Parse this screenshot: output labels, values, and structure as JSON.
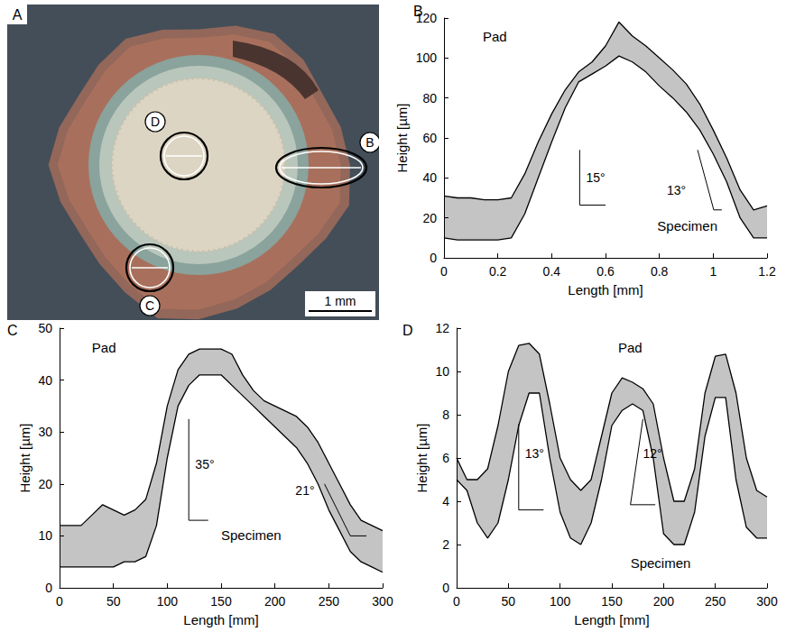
{
  "image_panel": {
    "letter": "A",
    "markers": [
      "D",
      "B",
      "C"
    ],
    "scale_bar": "1 mm"
  },
  "chart_data": [
    {
      "type": "band",
      "letter": "B",
      "color": "#c4c4c4",
      "annotations": [
        "Pad",
        "Specimen"
      ],
      "slope_labels": [
        "15°",
        "13°"
      ],
      "x_label": "Length [mm]",
      "y_label": "Height [µm]",
      "xlim": [
        0,
        1.2
      ],
      "xticks": [
        0,
        0.2,
        0.4,
        0.6,
        0.8,
        1,
        1.2
      ],
      "ylim": [
        0,
        120
      ],
      "yticks": [
        0,
        20,
        40,
        60,
        80,
        100,
        120
      ],
      "x": [
        0,
        0.05,
        0.1,
        0.15,
        0.2,
        0.25,
        0.3,
        0.35,
        0.4,
        0.45,
        0.5,
        0.55,
        0.6,
        0.65,
        0.7,
        0.75,
        0.8,
        0.85,
        0.9,
        0.95,
        1,
        1.05,
        1.1,
        1.15,
        1.2
      ],
      "series": [
        {
          "color": "#000000",
          "values": [
            31,
            30,
            30,
            29,
            29,
            30,
            42,
            58,
            72,
            84,
            93,
            98,
            106,
            118,
            111,
            106,
            100,
            94,
            87,
            77,
            64,
            50,
            34,
            24,
            26
          ]
        },
        {
          "color": "#000000",
          "values": [
            10,
            9,
            9,
            9,
            9,
            10,
            22,
            40,
            58,
            75,
            88,
            92,
            96,
            101,
            98,
            93,
            86,
            80,
            73,
            64,
            52,
            38,
            20,
            10,
            10
          ]
        }
      ]
    },
    {
      "type": "band",
      "letter": "C",
      "color": "#c4c4c4",
      "annotations": [
        "Pad",
        "Specimen"
      ],
      "slope_labels": [
        "35°",
        "21°"
      ],
      "x_label": "Length [mm]",
      "y_label": "Height [µm]",
      "xlim": [
        0,
        300
      ],
      "xticks": [
        0,
        50,
        100,
        150,
        200,
        250,
        300
      ],
      "ylim": [
        0,
        50
      ],
      "yticks": [
        0,
        10,
        20,
        30,
        40,
        50
      ],
      "x": [
        0,
        10,
        20,
        30,
        40,
        50,
        60,
        70,
        80,
        90,
        100,
        110,
        120,
        130,
        140,
        150,
        160,
        170,
        180,
        190,
        200,
        210,
        220,
        230,
        240,
        250,
        260,
        270,
        280,
        290,
        300
      ],
      "series": [
        {
          "color": "#000000",
          "values": [
            12,
            12,
            12,
            14,
            16,
            15,
            14,
            15,
            17,
            24,
            35,
            42,
            45,
            46,
            46,
            46,
            45,
            41,
            38,
            36,
            35,
            34,
            33,
            31,
            28,
            24,
            20,
            16,
            13,
            12,
            11
          ]
        },
        {
          "color": "#000000",
          "values": [
            4,
            4,
            4,
            4,
            4,
            4,
            5,
            5,
            6,
            12,
            25,
            35,
            39,
            41,
            41,
            41,
            39,
            37,
            35,
            33,
            31,
            29,
            27,
            24,
            20,
            15,
            11,
            7,
            5,
            4,
            3
          ]
        }
      ]
    },
    {
      "type": "band",
      "letter": "D",
      "color": "#c4c4c4",
      "annotations": [
        "Pad",
        "Specimen"
      ],
      "slope_labels": [
        "13°",
        "12°"
      ],
      "x_label": "Length [mm]",
      "y_label": "Height [µm]",
      "xlim": [
        0,
        300
      ],
      "xticks": [
        0,
        50,
        100,
        150,
        200,
        250,
        300
      ],
      "ylim": [
        0,
        12
      ],
      "yticks": [
        0,
        2,
        4,
        6,
        8,
        10,
        12
      ],
      "x": [
        0,
        10,
        20,
        30,
        40,
        50,
        60,
        70,
        80,
        90,
        100,
        110,
        120,
        130,
        140,
        150,
        160,
        170,
        180,
        190,
        200,
        210,
        220,
        230,
        240,
        250,
        260,
        270,
        280,
        290,
        300
      ],
      "series": [
        {
          "color": "#000000",
          "values": [
            6,
            5,
            5,
            5.5,
            7.5,
            10,
            11.2,
            11.3,
            10.8,
            8.5,
            6,
            5,
            4.5,
            5,
            7,
            9,
            9.7,
            9.5,
            9.2,
            8.5,
            6,
            4,
            4,
            5.5,
            9,
            10.7,
            10.8,
            9,
            6,
            4.5,
            4.2
          ]
        },
        {
          "color": "#000000",
          "values": [
            5,
            4.5,
            3,
            2.3,
            3,
            5,
            7.5,
            9,
            9,
            6,
            3.5,
            2.3,
            2,
            3,
            5,
            7.5,
            8.2,
            8.5,
            8.2,
            6,
            2.5,
            2,
            2,
            3.5,
            7,
            8.8,
            8.8,
            5,
            2.8,
            2.3,
            2.3
          ]
        }
      ]
    }
  ]
}
